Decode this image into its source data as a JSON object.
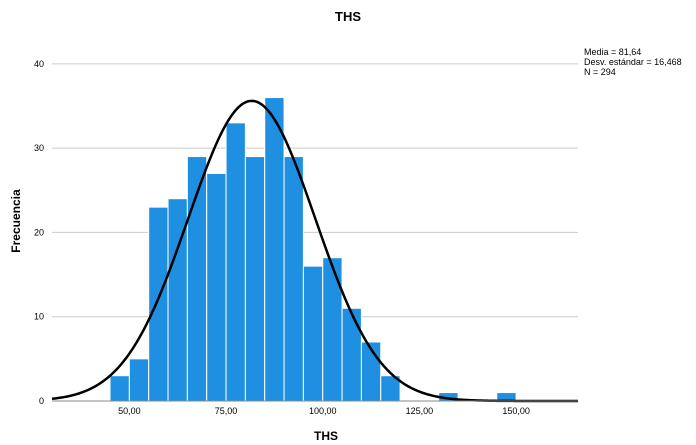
{
  "chart_data": {
    "type": "histogram",
    "title": "THS",
    "xlabel": "THS",
    "ylabel": "Frecuencia",
    "ylim": [
      0,
      42
    ],
    "y_ticks": [
      0,
      10,
      20,
      30,
      40
    ],
    "x_ticks": [
      "50,00",
      "75,00",
      "100,00",
      "125,00",
      "150,00"
    ],
    "x_tick_values": [
      50,
      75,
      100,
      125,
      150
    ],
    "xlim": [
      30,
      166
    ],
    "bins": [
      {
        "start": 45,
        "end": 50,
        "count": 3
      },
      {
        "start": 50,
        "end": 55,
        "count": 5
      },
      {
        "start": 55,
        "end": 60,
        "count": 23
      },
      {
        "start": 60,
        "end": 65,
        "count": 24
      },
      {
        "start": 65,
        "end": 70,
        "count": 29
      },
      {
        "start": 70,
        "end": 75,
        "count": 27
      },
      {
        "start": 75,
        "end": 80,
        "count": 33
      },
      {
        "start": 80,
        "end": 85,
        "count": 29
      },
      {
        "start": 85,
        "end": 90,
        "count": 36
      },
      {
        "start": 90,
        "end": 95,
        "count": 29
      },
      {
        "start": 95,
        "end": 100,
        "count": 16
      },
      {
        "start": 100,
        "end": 105,
        "count": 17
      },
      {
        "start": 105,
        "end": 110,
        "count": 11
      },
      {
        "start": 110,
        "end": 115,
        "count": 7
      },
      {
        "start": 115,
        "end": 120,
        "count": 3
      },
      {
        "start": 120,
        "end": 125,
        "count": 0
      },
      {
        "start": 125,
        "end": 130,
        "count": 0
      },
      {
        "start": 130,
        "end": 135,
        "count": 1
      },
      {
        "start": 135,
        "end": 140,
        "count": 0
      },
      {
        "start": 140,
        "end": 145,
        "count": 0
      },
      {
        "start": 145,
        "end": 150,
        "count": 1
      }
    ],
    "normal_curve": {
      "mean": 81.64,
      "sd": 16.468,
      "n": 294,
      "bin_width": 5
    },
    "stats_lines": [
      "Media = 81,64",
      "Desv. estándar = 16,468",
      "N = 294"
    ],
    "colors": {
      "bar": "#1e8fe1",
      "curve": "#000000",
      "grid": "#cccccc"
    },
    "grid": true
  }
}
